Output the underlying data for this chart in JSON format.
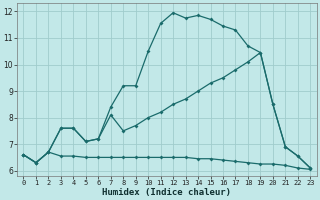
{
  "xlabel": "Humidex (Indice chaleur)",
  "bg_color": "#c2e8e8",
  "grid_color": "#a0cccc",
  "line_color": "#1a6b6b",
  "xlim": [
    -0.5,
    23.5
  ],
  "ylim": [
    5.8,
    12.3
  ],
  "line_upper_x": [
    0,
    1,
    2,
    3,
    4,
    5,
    6,
    7,
    8,
    9,
    10,
    11,
    12,
    13,
    14,
    15,
    16,
    17,
    18,
    19,
    20,
    21,
    22,
    23
  ],
  "line_upper_y": [
    6.6,
    6.3,
    6.7,
    7.6,
    7.6,
    7.1,
    7.2,
    8.4,
    9.2,
    9.2,
    10.5,
    11.55,
    11.95,
    11.75,
    11.85,
    11.7,
    11.45,
    11.3,
    10.7,
    10.45,
    8.5,
    6.9,
    6.55,
    6.1
  ],
  "line_lower_x": [
    0,
    1,
    2,
    3,
    4,
    5,
    6,
    7,
    8,
    9,
    10,
    11,
    12,
    13,
    14,
    15,
    16,
    17,
    18,
    19,
    20,
    21,
    22,
    23
  ],
  "line_lower_y": [
    6.6,
    6.3,
    6.7,
    6.55,
    6.55,
    6.5,
    6.5,
    6.5,
    6.5,
    6.5,
    6.5,
    6.5,
    6.5,
    6.5,
    6.45,
    6.45,
    6.4,
    6.35,
    6.3,
    6.25,
    6.25,
    6.2,
    6.1,
    6.05
  ],
  "line_diag_x": [
    0,
    1,
    2,
    3,
    4,
    5,
    6,
    7,
    8,
    9,
    10,
    11,
    12,
    13,
    14,
    15,
    16,
    17,
    18,
    19,
    20,
    21,
    22,
    23
  ],
  "line_diag_y": [
    6.6,
    6.3,
    6.7,
    7.6,
    7.6,
    7.1,
    7.2,
    8.1,
    7.5,
    7.7,
    8.0,
    8.2,
    8.5,
    8.7,
    9.0,
    9.3,
    9.5,
    9.8,
    10.1,
    10.45,
    8.5,
    6.9,
    6.55,
    6.1
  ],
  "yticks": [
    6,
    7,
    8,
    9,
    10,
    11,
    12
  ],
  "xticks": [
    0,
    1,
    2,
    3,
    4,
    5,
    6,
    7,
    8,
    9,
    10,
    11,
    12,
    13,
    14,
    15,
    16,
    17,
    18,
    19,
    20,
    21,
    22,
    23
  ]
}
